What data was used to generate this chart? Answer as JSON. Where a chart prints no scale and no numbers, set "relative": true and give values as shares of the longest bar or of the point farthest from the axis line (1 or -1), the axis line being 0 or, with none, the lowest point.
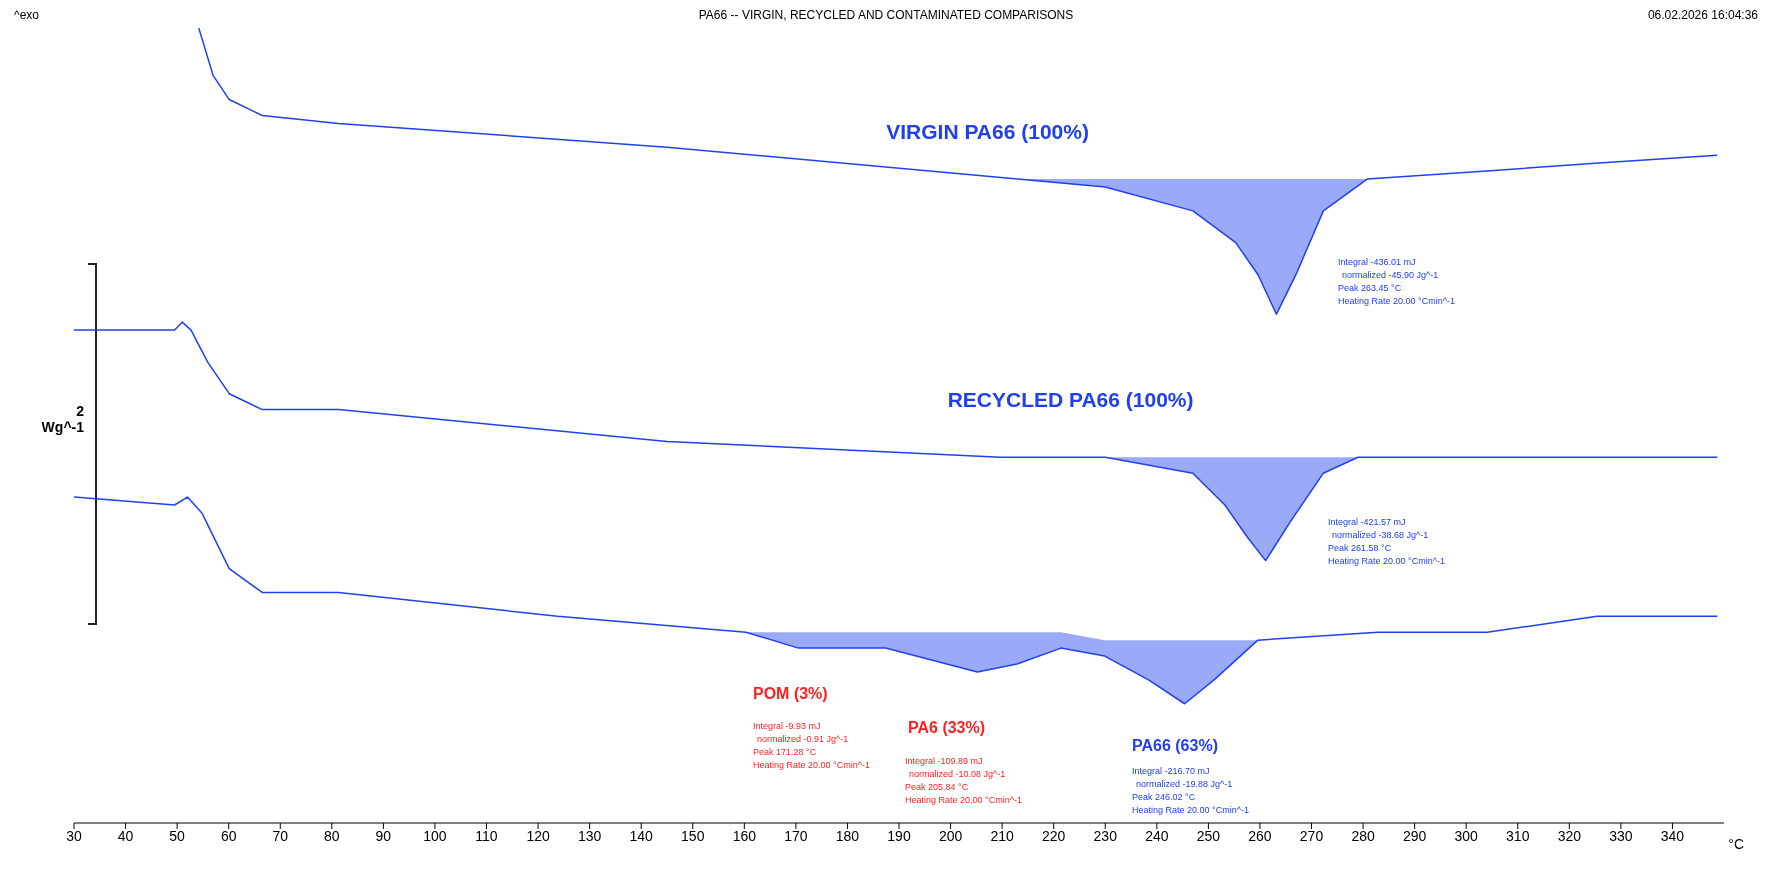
{
  "chart_data": {
    "type": "line",
    "title": "PA66 -- VIRGIN, RECYCLED AND CONTAMINATED COMPARISONS",
    "xlabel": "°C",
    "relative": true,
    "xlim": [
      30,
      350
    ],
    "xticks": [
      30,
      40,
      50,
      60,
      70,
      80,
      90,
      100,
      110,
      120,
      130,
      140,
      150,
      160,
      170,
      180,
      190,
      200,
      210,
      220,
      230,
      240,
      250,
      260,
      270,
      280,
      290,
      300,
      310,
      320,
      330,
      340
    ],
    "grid": false,
    "legend": false,
    "marker": "none",
    "line_style": "solid",
    "series": [
      {
        "name": "VIRGIN PA66 (100%)",
        "color": "#2040f0",
        "x": [
          54.2,
          57,
          60.1,
          66.5,
          81.3,
          145,
          213,
          230,
          247,
          255.3,
          259.6,
          263.2,
          267,
          272.3,
          280.8,
          304,
          325,
          348.7
        ],
        "values": [
          1.0,
          0.94,
          0.91,
          0.89,
          0.88,
          0.85,
          0.81,
          0.8,
          0.77,
          0.73,
          0.69,
          0.64,
          0.69,
          0.77,
          0.81,
          0.82,
          0.83,
          0.84
        ],
        "lower": [
          null,
          null,
          null,
          null,
          null,
          null,
          0.81,
          0.8,
          0.77,
          0.73,
          0.69,
          0.64,
          0.69,
          0.77,
          0.81,
          null,
          null,
          null
        ],
        "upper": [
          null,
          null,
          null,
          null,
          null,
          null,
          0.81,
          0.81,
          0.81,
          0.81,
          0.81,
          0.81,
          0.81,
          0.81,
          0.81,
          null,
          null,
          null
        ]
      },
      {
        "name": "RECYCLED PA66 (100%)",
        "color": "#2040f0",
        "x": [
          30,
          47.4,
          49.5,
          51,
          52.7,
          55.9,
          60.1,
          66.5,
          81.3,
          145,
          209.7,
          230,
          247,
          253.2,
          257.5,
          261.1,
          266,
          272.3,
          279,
          304,
          348.7
        ],
        "values": [
          0.62,
          0.62,
          0.62,
          0.63,
          0.62,
          0.58,
          0.54,
          0.52,
          0.52,
          0.48,
          0.46,
          0.46,
          0.44,
          0.4,
          0.36,
          0.33,
          0.38,
          0.44,
          0.46,
          0.46,
          0.46
        ],
        "lower": [
          null,
          null,
          null,
          null,
          null,
          null,
          null,
          null,
          null,
          null,
          0.46,
          0.46,
          0.44,
          0.4,
          0.36,
          0.33,
          0.38,
          0.44,
          0.46,
          null,
          null
        ],
        "upper": [
          null,
          null,
          null,
          null,
          null,
          null,
          null,
          null,
          null,
          null,
          0.46,
          0.46,
          0.46,
          0.46,
          0.46,
          0.46,
          0.46,
          0.46,
          0.46,
          null,
          null
        ]
      },
      {
        "color": "#2040f0",
        "x": [
          30,
          49.5,
          52,
          54.8,
          60.1,
          66.5,
          81.3,
          123.8,
          160.3,
          170.5,
          178.9,
          187.4,
          205.2,
          212.9,
          221.4,
          229.9,
          238.4,
          245.4,
          251.1,
          259.6,
          282.9,
          304.1,
          325.4,
          336,
          348.7
        ],
        "values": [
          0.41,
          0.4,
          0.41,
          0.39,
          0.32,
          0.29,
          0.29,
          0.26,
          0.24,
          0.22,
          0.22,
          0.22,
          0.19,
          0.2,
          0.22,
          0.21,
          0.18,
          0.15,
          0.18,
          0.23,
          0.24,
          0.24,
          0.26,
          0.26,
          0.26
        ],
        "lower": [
          null,
          null,
          null,
          null,
          null,
          null,
          null,
          null,
          0.24,
          0.22,
          0.22,
          0.22,
          0.19,
          0.2,
          0.22,
          0.21,
          0.18,
          0.15,
          0.18,
          0.23,
          null,
          null,
          null,
          null,
          null
        ],
        "upper": [
          null,
          null,
          null,
          null,
          null,
          null,
          null,
          null,
          0.24,
          0.24,
          0.24,
          0.24,
          0.24,
          0.24,
          0.24,
          0.23,
          0.23,
          0.23,
          0.23,
          0.23,
          null,
          null,
          null,
          null,
          null
        ]
      }
    ],
    "annotations": [
      "^exo",
      "06.02.2026 16:04:36",
      "2\nWg^-1",
      "Integral -436.01 mJ\nnormalized -45.90 Jg^-1\nPeak 263.45 °C\nHeating Rate 20.00 °Cmin^-1",
      "Integral -421.57 mJ\nnormalized -38.68 Jg^-1\nPeak 261.58 °C\nHeating Rate 20.00 °Cmin^-1",
      "POM (3%)",
      "Integral -9.93 mJ\nnormalized -0.91 Jg^-1\nPeak 171.28 °C\nHeating Rate 20.00 °Cmin^-1",
      "PA6 (33%)",
      "Integral -109.89 mJ\nnormalized -10.08 Jg^-1\nPeak 205.84 °C\nHeating Rate 20.00 °Cmin^-1",
      "PA66 (63%)",
      "Integral -216.70 mJ\nnormalized -19.88 Jg^-1\nPeak 246.02 °C\nHeating Rate 20.00 °Cmin^-1"
    ]
  }
}
